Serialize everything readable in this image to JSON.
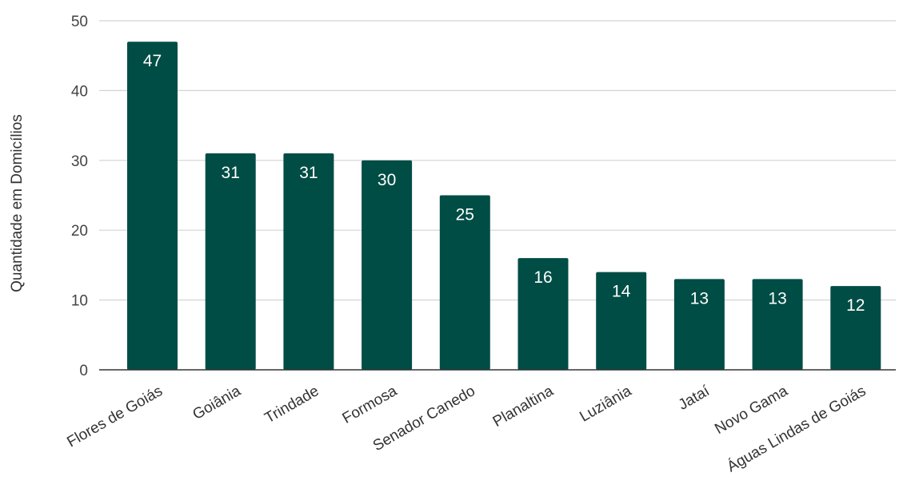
{
  "chart_data": {
    "type": "bar",
    "categories": [
      "Flores de Goiás",
      "Goiânia",
      "Trindade",
      "Formosa",
      "Senador Canedo",
      "Planaltina",
      "Luziânia",
      "Jataí",
      "Novo Gama",
      "Águas Lindas de Goiás"
    ],
    "values": [
      47,
      31,
      31,
      30,
      25,
      16,
      14,
      13,
      13,
      12
    ],
    "title": "",
    "xlabel": "",
    "ylabel": "Quantidade em Domicílios",
    "ylim": [
      0,
      50
    ],
    "yticks": [
      0,
      10,
      20,
      30,
      40,
      50
    ],
    "grid": true,
    "data_labels": true,
    "bar_color": "#004d45",
    "data_label_color": "#ffffff",
    "grid_color": "#d4d4d4",
    "axis_color": "#333333"
  }
}
